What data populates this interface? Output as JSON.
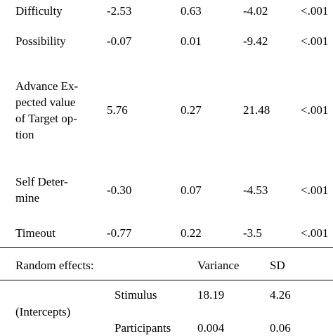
{
  "fixed_effects": [
    {
      "label": "Difficulty",
      "estimate": "-2.53",
      "se": "0.63",
      "z": "-4.02",
      "p": "<.001"
    },
    {
      "label": "Possibility",
      "estimate": "-0.07",
      "se": "0.01",
      "z": "-9.42",
      "p": "<.001"
    },
    {
      "label_lines": [
        "Advance Ex-",
        "pected value",
        "of Target op-",
        "tion"
      ],
      "estimate": "5.76",
      "se": "0.27",
      "z": "21.48",
      "p": "<.001"
    },
    {
      "label_lines": [
        "Self Deter-",
        "mine"
      ],
      "estimate": "-0.30",
      "se": "0.07",
      "z": "-4.53",
      "p": "<.001"
    },
    {
      "label": "Timeout",
      "estimate": "-0.77",
      "se": "0.22",
      "z": "-3.5",
      "p": "<.001"
    }
  ],
  "random_effects": {
    "header": "Random effects:",
    "col_variance": "Variance",
    "col_sd": "SD",
    "group_label": "(Intercepts)",
    "rows": [
      {
        "name": "Stimulus",
        "variance": "18.19",
        "sd": "4.26"
      },
      {
        "name": "Participants",
        "variance": "0.004",
        "sd": "0.06"
      }
    ]
  }
}
